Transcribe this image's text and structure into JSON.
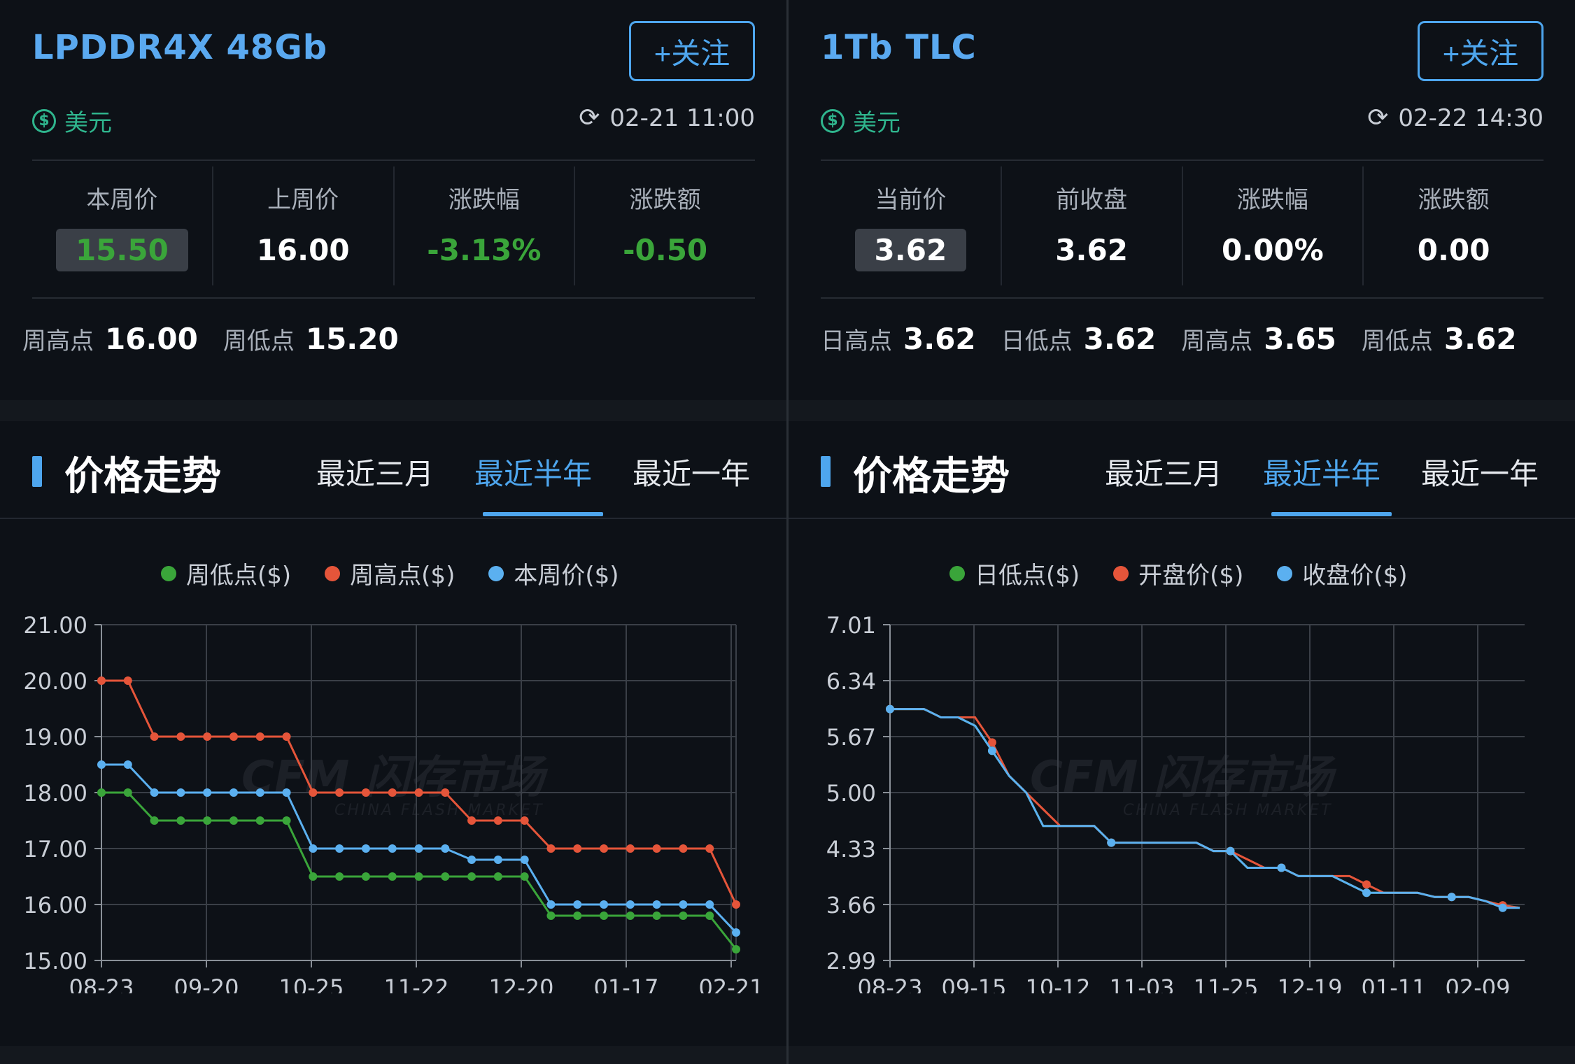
{
  "left": {
    "title": "LPDDR4X 48Gb",
    "follow_label": "+关注",
    "currency": "美元",
    "currency_icon": "dollar-circle-icon",
    "updated_time": "02-21 11:00",
    "stats": [
      {
        "label": "本周价",
        "value": "15.50"
      },
      {
        "label": "上周价",
        "value": "16.00"
      },
      {
        "label": "涨跌幅",
        "value": "-3.13%"
      },
      {
        "label": "涨跌额",
        "value": "-0.50"
      }
    ],
    "extremes": [
      {
        "label": "周高点",
        "value": "16.00"
      },
      {
        "label": "周低点",
        "value": "15.20"
      }
    ],
    "trend_title": "价格走势",
    "tabs": [
      "最近三月",
      "最近半年",
      "最近一年"
    ],
    "active_tab": "最近半年",
    "watermark": {
      "logo": "CFM 闪存市场",
      "sub": "CHINA FLASH MARKET"
    }
  },
  "right": {
    "title": "1Tb TLC",
    "follow_label": "+关注",
    "currency": "美元",
    "currency_icon": "dollar-circle-icon",
    "updated_time": "02-22 14:30",
    "stats": [
      {
        "label": "当前价",
        "value": "3.62"
      },
      {
        "label": "前收盘",
        "value": "3.62"
      },
      {
        "label": "涨跌幅",
        "value": "0.00%"
      },
      {
        "label": "涨跌额",
        "value": "0.00"
      }
    ],
    "extremes": [
      {
        "label": "日高点",
        "value": "3.62"
      },
      {
        "label": "日低点",
        "value": "3.62"
      },
      {
        "label": "周高点",
        "value": "3.65"
      },
      {
        "label": "周低点",
        "value": "3.62"
      }
    ],
    "trend_title": "价格走势",
    "tabs": [
      "最近三月",
      "最近半年",
      "最近一年"
    ],
    "active_tab": "最近半年",
    "watermark": {
      "logo": "CFM 闪存市场",
      "sub": "CHINA FLASH MARKET"
    }
  },
  "colors": {
    "accent": "#4ea6ee",
    "title": "#5aa9f0",
    "green": "#3aa53a",
    "red": "#e5553a",
    "blue": "#5bb0f0",
    "currency": "#2fb58d"
  },
  "chart_data": [
    {
      "type": "line",
      "ylim": [
        15.0,
        21.0
      ],
      "yticks": [
        "21.00",
        "20.00",
        "19.00",
        "18.00",
        "17.00",
        "16.00",
        "15.00"
      ],
      "xticks": [
        "08-23",
        "09-20",
        "10-25",
        "11-22",
        "12-20",
        "01-17",
        "02-21"
      ],
      "grid": true,
      "legend_position": "top",
      "series": [
        {
          "name": "周低点($)",
          "color": "#3aa53a",
          "values": [
            18.0,
            18.0,
            17.5,
            17.5,
            17.5,
            17.5,
            17.5,
            17.5,
            16.5,
            16.5,
            16.5,
            16.5,
            16.5,
            16.5,
            16.5,
            16.5,
            16.5,
            15.8,
            15.8,
            15.8,
            15.8,
            15.8,
            15.8,
            15.8,
            15.2
          ]
        },
        {
          "name": "周高点($)",
          "color": "#e5553a",
          "values": [
            20.0,
            20.0,
            19.0,
            19.0,
            19.0,
            19.0,
            19.0,
            19.0,
            18.0,
            18.0,
            18.0,
            18.0,
            18.0,
            18.0,
            17.5,
            17.5,
            17.5,
            17.0,
            17.0,
            17.0,
            17.0,
            17.0,
            17.0,
            17.0,
            16.0
          ]
        },
        {
          "name": "本周价($)",
          "color": "#5bb0f0",
          "values": [
            18.5,
            18.5,
            18.0,
            18.0,
            18.0,
            18.0,
            18.0,
            18.0,
            17.0,
            17.0,
            17.0,
            17.0,
            17.0,
            17.0,
            16.8,
            16.8,
            16.8,
            16.0,
            16.0,
            16.0,
            16.0,
            16.0,
            16.0,
            16.0,
            15.5
          ]
        }
      ]
    },
    {
      "type": "line",
      "ylim": [
        2.99,
        7.01
      ],
      "yticks": [
        "7.01",
        "6.34",
        "5.67",
        "5.00",
        "4.33",
        "3.66",
        "2.99"
      ],
      "xticks": [
        "08-23",
        "09-15",
        "10-12",
        "11-03",
        "11-25",
        "12-19",
        "01-11",
        "02-09"
      ],
      "grid": true,
      "legend_position": "top",
      "series": [
        {
          "name": "日低点($)",
          "color": "#3aa53a",
          "values": [
            6.0,
            6.0,
            6.0,
            5.9,
            5.9,
            5.8,
            5.5,
            5.2,
            5.0,
            4.6,
            4.6,
            4.6,
            4.6,
            4.4,
            4.4,
            4.4,
            4.4,
            4.4,
            4.4,
            4.3,
            4.3,
            4.1,
            4.1,
            4.1,
            4.0,
            4.0,
            4.0,
            3.9,
            3.8,
            3.8,
            3.8,
            3.8,
            3.75,
            3.75,
            3.75,
            3.7,
            3.65,
            3.62
          ]
        },
        {
          "name": "开盘价($)",
          "color": "#e5553a",
          "values": [
            6.0,
            6.0,
            6.0,
            5.9,
            5.9,
            5.9,
            5.6,
            5.2,
            5.0,
            4.8,
            4.6,
            4.6,
            4.6,
            4.4,
            4.4,
            4.4,
            4.4,
            4.4,
            4.4,
            4.3,
            4.3,
            4.2,
            4.1,
            4.1,
            4.0,
            4.0,
            4.0,
            4.0,
            3.9,
            3.8,
            3.8,
            3.8,
            3.75,
            3.75,
            3.75,
            3.7,
            3.65,
            3.62
          ]
        },
        {
          "name": "收盘价($)",
          "color": "#5bb0f0",
          "values": [
            6.0,
            6.0,
            6.0,
            5.9,
            5.9,
            5.8,
            5.5,
            5.2,
            5.0,
            4.6,
            4.6,
            4.6,
            4.6,
            4.4,
            4.4,
            4.4,
            4.4,
            4.4,
            4.4,
            4.3,
            4.3,
            4.1,
            4.1,
            4.1,
            4.0,
            4.0,
            4.0,
            3.9,
            3.8,
            3.8,
            3.8,
            3.8,
            3.75,
            3.75,
            3.75,
            3.7,
            3.62,
            3.62
          ]
        }
      ]
    }
  ]
}
